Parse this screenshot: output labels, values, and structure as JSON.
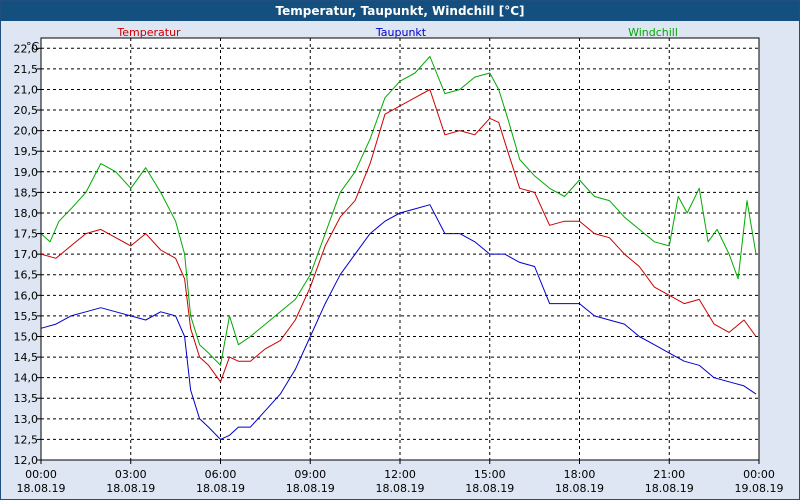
{
  "window": {
    "title": "Temperatur, Taupunkt, Windchill [°C]"
  },
  "chart_data": {
    "type": "line",
    "title": "Temperatur, Taupunkt, Windchill [°C]",
    "ylabel": "°C",
    "ylim": [
      12.0,
      22.25
    ],
    "yticks": [
      "12,0",
      "12,5",
      "13,0",
      "13,5",
      "14,0",
      "14,5",
      "15,0",
      "15,5",
      "16,0",
      "16,5",
      "17,0",
      "17,5",
      "18,0",
      "18,5",
      "19,0",
      "19,5",
      "20,0",
      "20,5",
      "21,0",
      "21,5",
      "22,0"
    ],
    "xlim": [
      0,
      24
    ],
    "xticks": [
      {
        "time": "00:00",
        "date": "18.08.19"
      },
      {
        "time": "03:00",
        "date": "18.08.19"
      },
      {
        "time": "06:00",
        "date": "18.08.19"
      },
      {
        "time": "09:00",
        "date": "18.08.19"
      },
      {
        "time": "12:00",
        "date": "18.08.19"
      },
      {
        "time": "15:00",
        "date": "18.08.19"
      },
      {
        "time": "18:00",
        "date": "18.08.19"
      },
      {
        "time": "21:00",
        "date": "18.08.19"
      },
      {
        "time": "00:00",
        "date": "19.08.19"
      }
    ],
    "grid": true,
    "legend_position": "top",
    "x_unit": "hours since 18.08.19 00:00",
    "series": [
      {
        "name": "Temperatur",
        "color": "#cc0000",
        "x": [
          0,
          0.5,
          1,
          1.5,
          2,
          2.5,
          3,
          3.5,
          4,
          4.5,
          4.8,
          5,
          5.3,
          5.6,
          6,
          6.3,
          6.6,
          7,
          7.5,
          8,
          8.5,
          9,
          9.5,
          10,
          10.5,
          11,
          11.5,
          12,
          12.5,
          13,
          13.5,
          14,
          14.5,
          15,
          15.3,
          15.6,
          16,
          16.5,
          17,
          17.5,
          18,
          18.5,
          19,
          19.5,
          20,
          20.5,
          21,
          21.5,
          22,
          22.5,
          23,
          23.5,
          23.9
        ],
        "y": [
          17.0,
          16.9,
          17.2,
          17.5,
          17.6,
          17.4,
          17.2,
          17.5,
          17.1,
          16.9,
          16.4,
          15.2,
          14.5,
          14.3,
          13.9,
          14.5,
          14.4,
          14.4,
          14.7,
          14.9,
          15.4,
          16.2,
          17.2,
          17.9,
          18.3,
          19.2,
          20.4,
          20.6,
          20.8,
          21.0,
          19.9,
          20.0,
          19.9,
          20.3,
          20.2,
          19.5,
          18.6,
          18.5,
          17.7,
          17.8,
          17.8,
          17.5,
          17.4,
          17.0,
          16.7,
          16.2,
          16.0,
          15.8,
          15.9,
          15.3,
          15.1,
          15.4,
          15.0
        ]
      },
      {
        "name": "Taupunkt",
        "color": "#0000cc",
        "x": [
          0,
          0.5,
          1,
          1.5,
          2,
          2.5,
          3,
          3.5,
          4,
          4.5,
          4.8,
          5,
          5.3,
          5.6,
          6,
          6.3,
          6.6,
          7,
          7.5,
          8,
          8.5,
          9,
          9.5,
          10,
          10.5,
          11,
          11.5,
          12,
          12.5,
          13,
          13.5,
          14,
          14.5,
          15,
          15.5,
          16,
          16.5,
          17,
          17.5,
          18,
          18.5,
          19,
          19.5,
          20,
          20.5,
          21,
          21.5,
          22,
          22.5,
          23,
          23.5,
          23.9
        ],
        "y": [
          15.2,
          15.3,
          15.5,
          15.6,
          15.7,
          15.6,
          15.5,
          15.4,
          15.6,
          15.5,
          15.0,
          13.7,
          13.0,
          12.8,
          12.5,
          12.6,
          12.8,
          12.8,
          13.2,
          13.6,
          14.2,
          15.0,
          15.8,
          16.5,
          17.0,
          17.5,
          17.8,
          18.0,
          18.1,
          18.2,
          17.5,
          17.5,
          17.3,
          17.0,
          17.0,
          16.8,
          16.7,
          15.8,
          15.8,
          15.8,
          15.5,
          15.4,
          15.3,
          15.0,
          14.8,
          14.6,
          14.4,
          14.3,
          14.0,
          13.9,
          13.8,
          13.6
        ]
      },
      {
        "name": "Windchill",
        "color": "#00aa00",
        "x": [
          0,
          0.3,
          0.6,
          1,
          1.5,
          2,
          2.5,
          3,
          3.5,
          4,
          4.5,
          4.8,
          5,
          5.3,
          5.6,
          6,
          6.3,
          6.6,
          7,
          7.5,
          8,
          8.5,
          9,
          9.5,
          10,
          10.5,
          11,
          11.5,
          12,
          12.5,
          13,
          13.5,
          14,
          14.5,
          15,
          15.3,
          15.6,
          16,
          16.5,
          17,
          17.5,
          18,
          18.5,
          19,
          19.5,
          20,
          20.5,
          21,
          21.3,
          21.6,
          22,
          22.3,
          22.6,
          23,
          23.3,
          23.6,
          23.9
        ],
        "y": [
          17.5,
          17.3,
          17.8,
          18.1,
          18.5,
          19.2,
          19.0,
          18.6,
          19.1,
          18.5,
          17.8,
          17.0,
          15.5,
          14.8,
          14.6,
          14.3,
          15.5,
          14.8,
          15.0,
          15.3,
          15.6,
          15.9,
          16.5,
          17.5,
          18.5,
          19.0,
          19.8,
          20.8,
          21.2,
          21.4,
          21.8,
          20.9,
          21.0,
          21.3,
          21.4,
          21.0,
          20.3,
          19.3,
          18.9,
          18.6,
          18.4,
          18.8,
          18.4,
          18.3,
          17.9,
          17.6,
          17.3,
          17.2,
          18.4,
          18.0,
          18.6,
          17.3,
          17.6,
          17.0,
          16.4,
          18.3,
          17.0
        ]
      }
    ]
  }
}
